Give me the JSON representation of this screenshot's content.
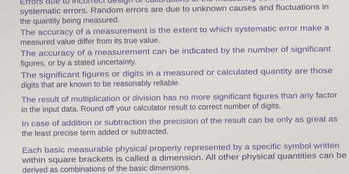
{
  "paragraphs": [
    {
      "lines": [
        "Errors due to incorrect design or calibrations of the measuring device are called",
        "systematic errors. Random errors are due to unknown causes and fluctuations in",
        "the quantity being measured."
      ]
    },
    {
      "lines": [
        "The accuracy of a measurement is the extent to which systematic error make a",
        "measured value differ from its true value."
      ]
    },
    {
      "lines": [
        "The accuracy of a measurement can be indicated by the number of significant",
        "figures, or by a stated uncertainty."
      ]
    },
    {
      "lines": [
        "The significant figures or digits in a measured or calculated quantity are those",
        "digits that are known to be reasonably reliable."
      ]
    },
    {
      "lines": [
        "The result of multiplication or division has no more significant figures than any factor",
        "in the input data. Round off your calculator result to correct number of digits."
      ]
    },
    {
      "lines": [
        "In case of addition or subtraction the precision of the result can be only as great as",
        "the least precise term added or subtracted."
      ]
    },
    {
      "lines": [
        "Each basic measurable physical property represented by a specific symbol written",
        "within square brackets is called a dimension. All other physical quantities can be",
        "derived as combinations of the basic dimensions."
      ]
    }
  ]
}
